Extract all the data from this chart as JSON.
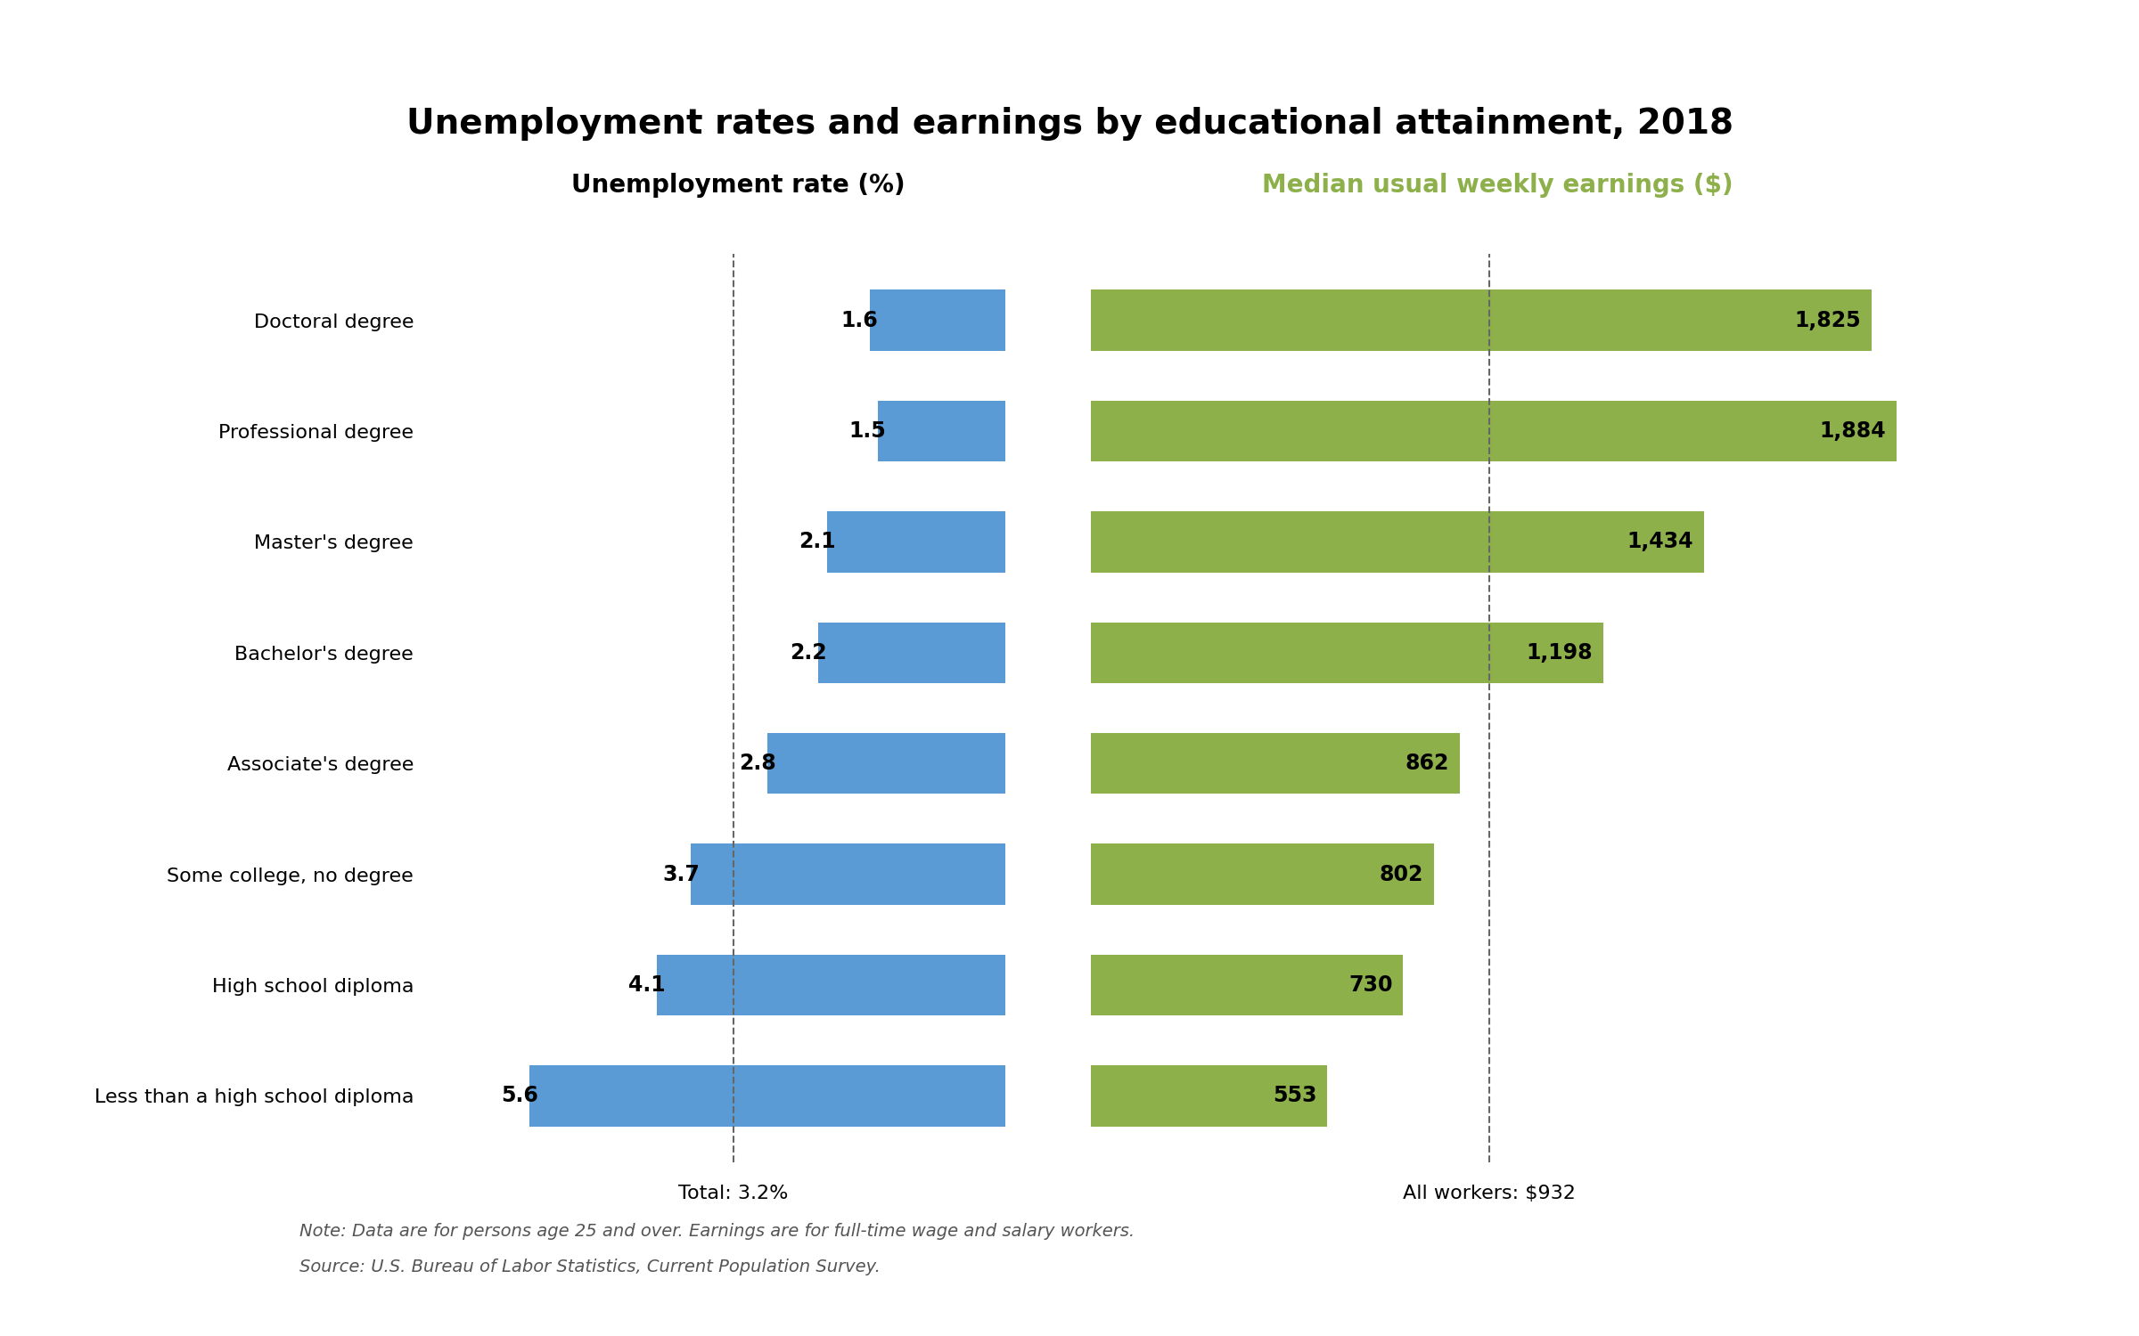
{
  "title": "Unemployment rates and earnings by educational attainment, 2018",
  "categories": [
    "Less than a high school diploma",
    "High school diploma",
    "Some college, no degree",
    "Associate's degree",
    "Bachelor's degree",
    "Master's degree",
    "Professional degree",
    "Doctoral degree"
  ],
  "unemployment_rates": [
    5.6,
    4.1,
    3.7,
    2.8,
    2.2,
    2.1,
    1.5,
    1.6
  ],
  "earnings": [
    553,
    730,
    802,
    862,
    1198,
    1434,
    1884,
    1825
  ],
  "unemployment_avg": 3.2,
  "earnings_avg": 932,
  "unemployment_label": "Total: 3.2%",
  "earnings_label": "All workers: $932",
  "left_axis_title": "Unemployment rate (%)",
  "right_axis_title": "Median usual weekly earnings ($)",
  "unemployment_color": "#5b9bd5",
  "earnings_color": "#8db04b",
  "note_line1": "Note: Data are for persons age 25 and over. Earnings are for full-time wage and salary workers.",
  "note_line2": "Source: U.S. Bureau of Labor Statistics, Current Population Survey.",
  "background_color": "#ffffff"
}
